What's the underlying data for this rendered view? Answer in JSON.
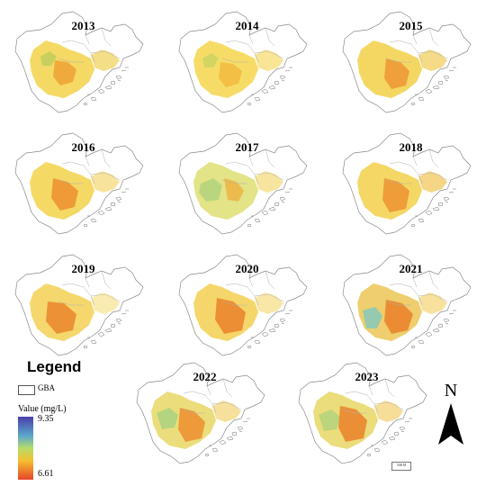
{
  "panels": [
    {
      "year": "2013"
    },
    {
      "year": "2014"
    },
    {
      "year": "2015"
    },
    {
      "year": "2016"
    },
    {
      "year": "2017"
    },
    {
      "year": "2018"
    },
    {
      "year": "2019"
    },
    {
      "year": "2020"
    },
    {
      "year": "2021"
    },
    {
      "year": "2022"
    },
    {
      "year": "2023"
    }
  ],
  "legend": {
    "title": "Legend",
    "boundary_label": "GBA",
    "value_label": "Value (mg/L)",
    "max": "9.35",
    "min": "6.61",
    "colors": {
      "high": "#4a3ea8",
      "mid": "#7ec8c0",
      "low": "#e8442a",
      "accent": "#f5c030"
    }
  },
  "north_arrow": {
    "label": "N"
  },
  "scale_bar": {
    "label": "50KM"
  }
}
